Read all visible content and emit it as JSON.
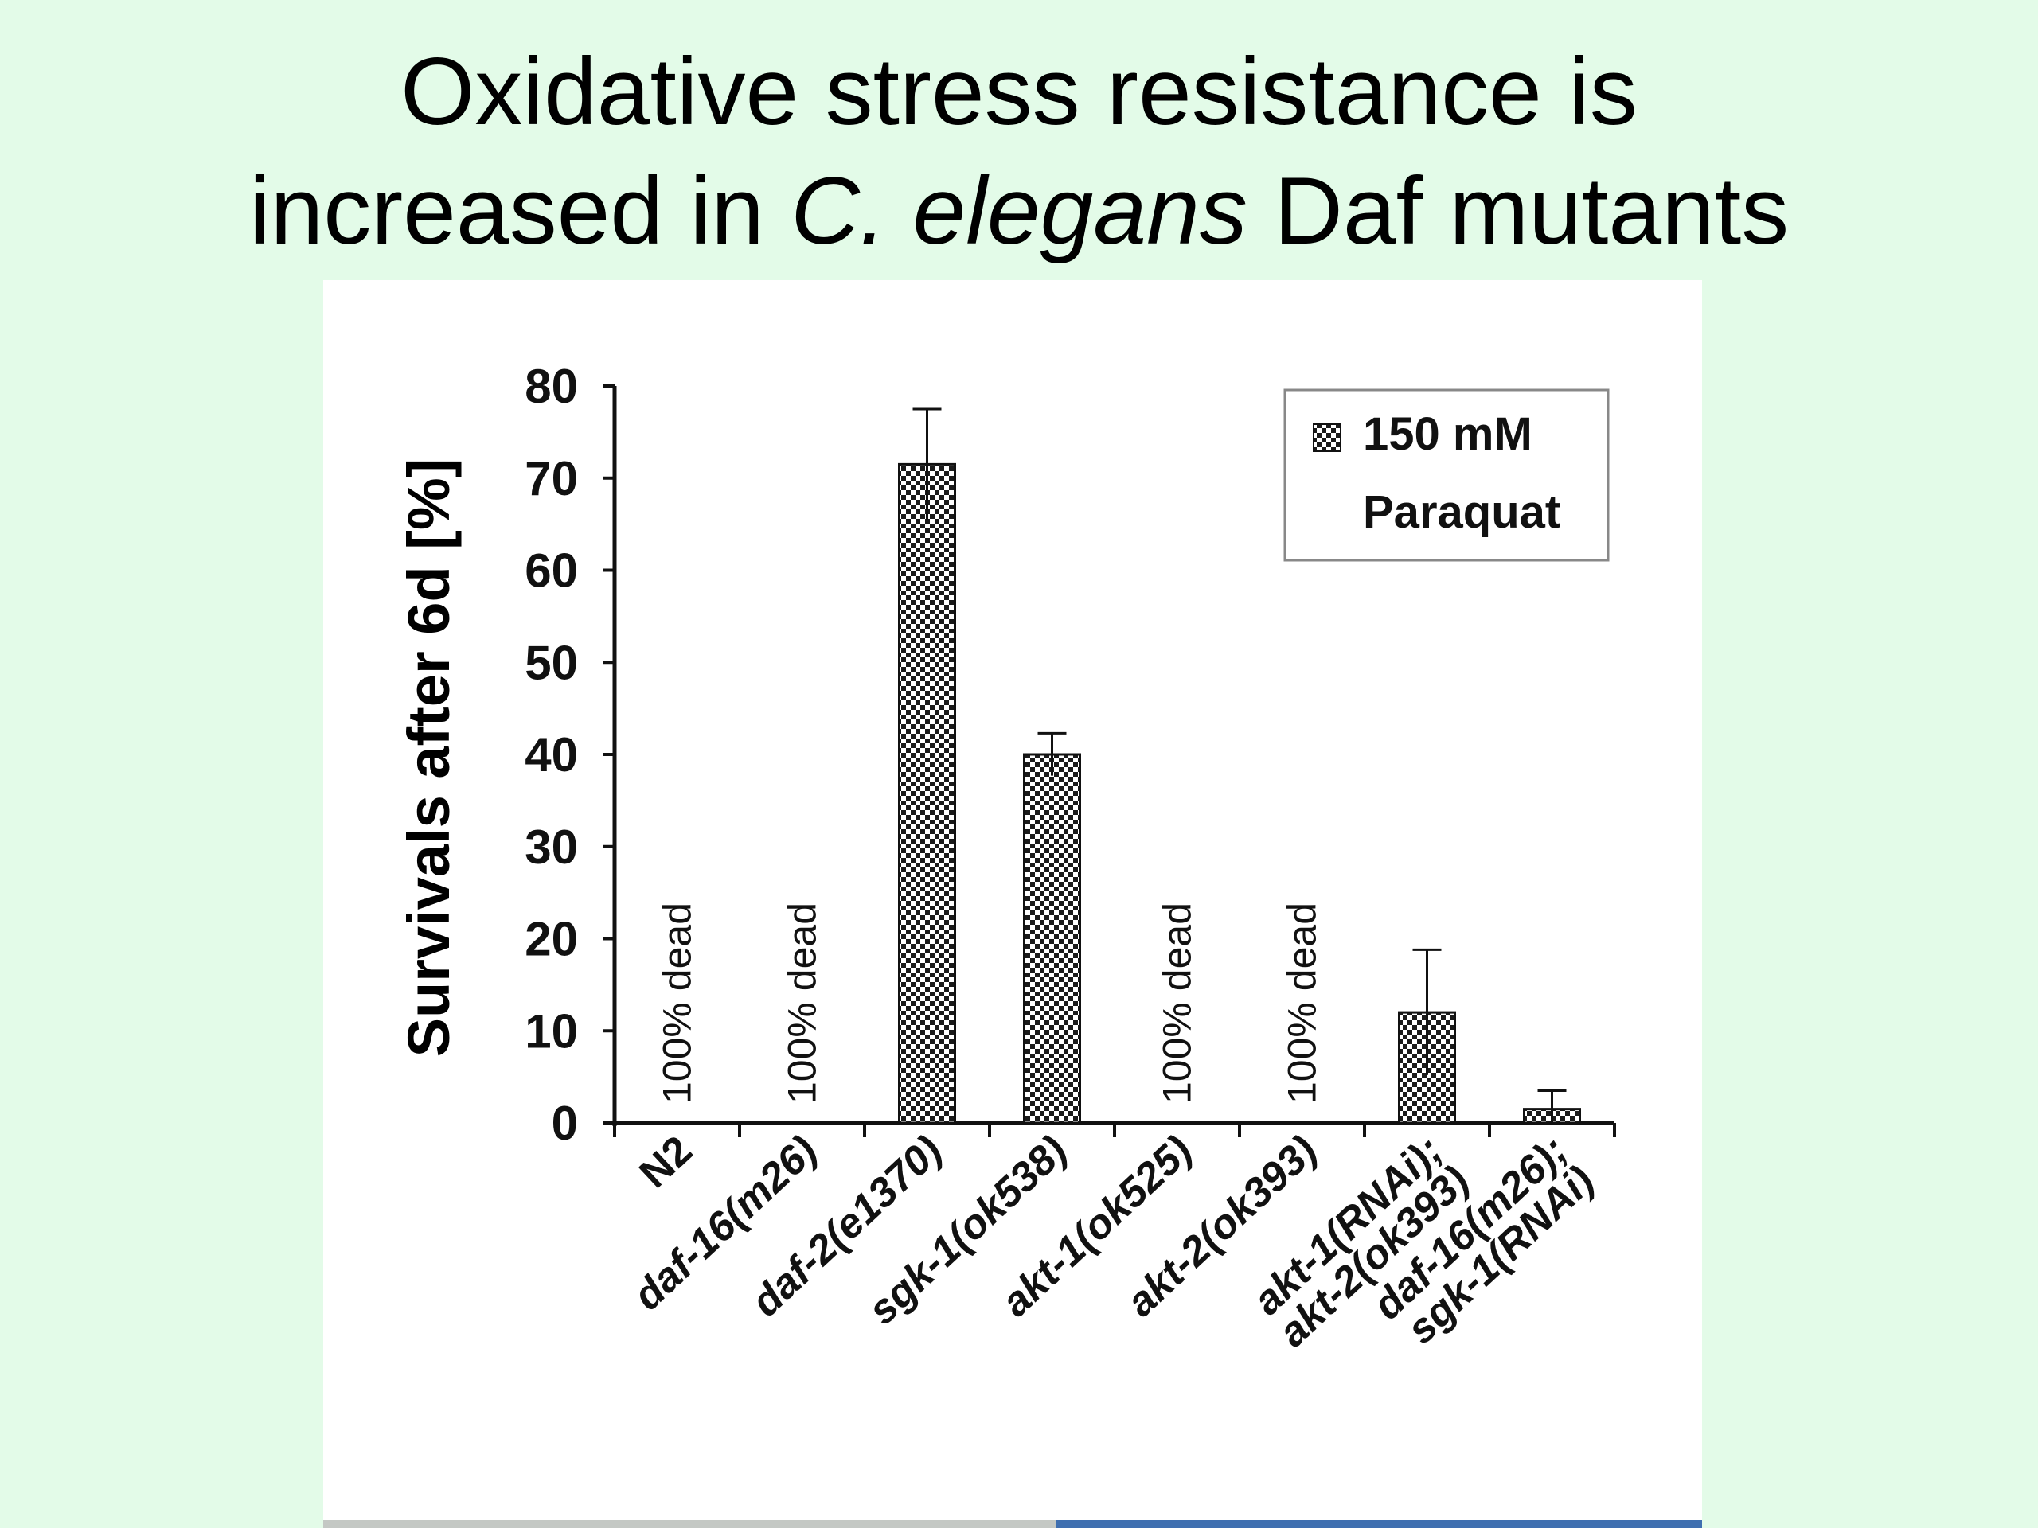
{
  "slide": {
    "title_line1": "Oxidative stress resistance is",
    "title_line2_pre": "increased in ",
    "title_line2_italic": "C. elegans",
    "title_line2_post": " Daf mutants"
  },
  "chart_data": {
    "type": "bar",
    "ylabel": "Survivals after 6d [%]",
    "xlabel": "",
    "ylim": [
      0,
      80
    ],
    "yticks": [
      0,
      10,
      20,
      30,
      40,
      50,
      60,
      70,
      80
    ],
    "grid": false,
    "legend_position": "top-right",
    "categories": [
      [
        "N2"
      ],
      [
        "daf-16(m26)"
      ],
      [
        "daf-2(e1370)"
      ],
      [
        "sgk-1(ok538)"
      ],
      [
        "akt-1(ok525)"
      ],
      [
        "akt-2(ok393)"
      ],
      [
        "akt-1(RNAi);",
        "akt-2(ok393)"
      ],
      [
        "daf-16(m26);",
        "sgk-1(RNAi)"
      ]
    ],
    "series": [
      {
        "name": "150 mM Paraquat",
        "name_lines": [
          "150 mM",
          "Paraquat"
        ],
        "values": [
          0,
          0,
          71.5,
          40,
          0,
          0,
          12,
          1.5
        ],
        "errors": [
          0,
          0,
          6,
          2.3,
          0,
          0,
          6.8,
          2
        ]
      }
    ],
    "annotations": [
      "100% dead",
      "100% dead",
      null,
      null,
      "100% dead",
      "100% dead",
      null,
      null
    ]
  }
}
